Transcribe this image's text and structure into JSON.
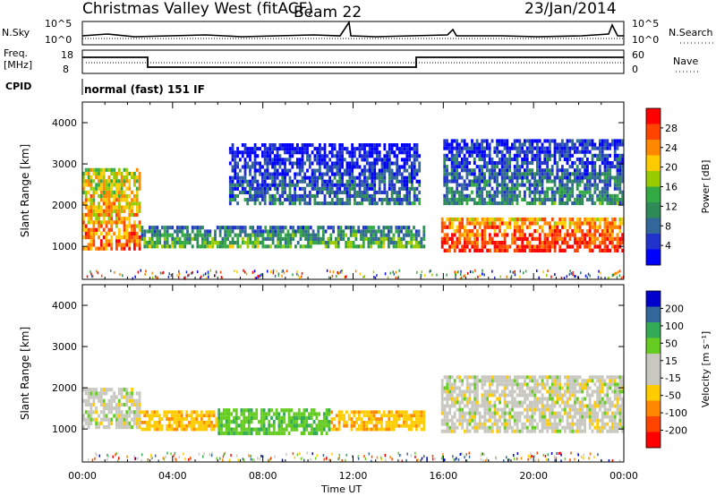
{
  "header": {
    "station": "Christmas Valley West (fitACF)",
    "beam": "Beam 22",
    "date": "23/Jan/2014"
  },
  "noise_panel": {
    "left_label": "N.Sky",
    "left_ticks": [
      "10^5",
      "10^0"
    ],
    "right_ticks": [
      "10^5",
      "10^0"
    ],
    "right_label": "N.Search"
  },
  "freq_panel": {
    "left_label_1": "Freq.",
    "left_label_2": "[MHz]",
    "left_ticks": [
      "18",
      "8"
    ],
    "right_ticks": [
      "60",
      "0"
    ],
    "right_label": "Nave"
  },
  "cpid": {
    "label": "CPID",
    "text": "normal (fast) 151 IF"
  },
  "chart_data": [
    {
      "type": "heatmap",
      "panel": "power",
      "ylabel": "Slant Range [km]",
      "yticks": [
        "1000",
        "2000",
        "3000",
        "4000"
      ],
      "ylim": [
        200,
        4500
      ],
      "xlim": [
        0,
        24
      ],
      "colorbar": {
        "label": "Power [dB]",
        "ticks": [
          "28",
          "24",
          "20",
          "16",
          "12",
          "8",
          "4"
        ],
        "colors": [
          "#ff0000",
          "#ff4400",
          "#ff8800",
          "#ffcc00",
          "#99cc00",
          "#33aa44",
          "#2e8b57",
          "#336699",
          "#2233cc",
          "#0000ff"
        ]
      },
      "features": [
        {
          "name": "early-echo",
          "t": [
            0.0,
            2.6
          ],
          "r": [
            900,
            2900
          ],
          "power": 22
        },
        {
          "name": "midday-band",
          "t": [
            2.6,
            15.2
          ],
          "r": [
            950,
            1500
          ],
          "power": 12
        },
        {
          "name": "high-range-arc",
          "t": [
            6.5,
            15.0
          ],
          "r": [
            2000,
            3500
          ],
          "power": 6
        },
        {
          "name": "evening-band",
          "t": [
            15.9,
            24.0
          ],
          "r": [
            850,
            1700
          ],
          "power": 26
        },
        {
          "name": "upper-scatter",
          "t": [
            16.0,
            24.0
          ],
          "r": [
            2000,
            3600
          ],
          "power": 8
        }
      ]
    },
    {
      "type": "heatmap",
      "panel": "velocity",
      "ylabel": "Slant Range [km]",
      "yticks": [
        "1000",
        "2000",
        "3000",
        "4000"
      ],
      "ylim": [
        200,
        4500
      ],
      "xlim": [
        0,
        24
      ],
      "colorbar": {
        "label": "Velocity [m s⁻¹]",
        "ticks": [
          "200",
          "100",
          "50",
          "15",
          "-15",
          "-50",
          "-100",
          "-200"
        ],
        "colors": [
          "#0000cc",
          "#336699",
          "#33aa55",
          "#66cc22",
          "#c8c8c0",
          "#c8c8c0",
          "#ffcc00",
          "#ff8800",
          "#ff4400",
          "#ff0000"
        ]
      },
      "features": [
        {
          "name": "early-ground",
          "t": [
            0.0,
            2.6
          ],
          "r": [
            1000,
            2000
          ],
          "velocity": 0
        },
        {
          "name": "midday-ground",
          "t": [
            2.6,
            6.0
          ],
          "r": [
            950,
            1450
          ],
          "velocity": -40
        },
        {
          "name": "midday-green",
          "t": [
            6.0,
            11.0
          ],
          "r": [
            850,
            1500
          ],
          "velocity": 40
        },
        {
          "name": "midday-orange",
          "t": [
            11.0,
            15.2
          ],
          "r": [
            950,
            1450
          ],
          "velocity": -40
        },
        {
          "name": "evening-ground",
          "t": [
            15.9,
            24.0
          ],
          "r": [
            900,
            2300
          ],
          "velocity": 0
        }
      ]
    }
  ],
  "time_axis": {
    "ticks": [
      "00:00",
      "04:00",
      "08:00",
      "12:00",
      "16:00",
      "20:00",
      "00:00"
    ],
    "label": "Time UT"
  }
}
